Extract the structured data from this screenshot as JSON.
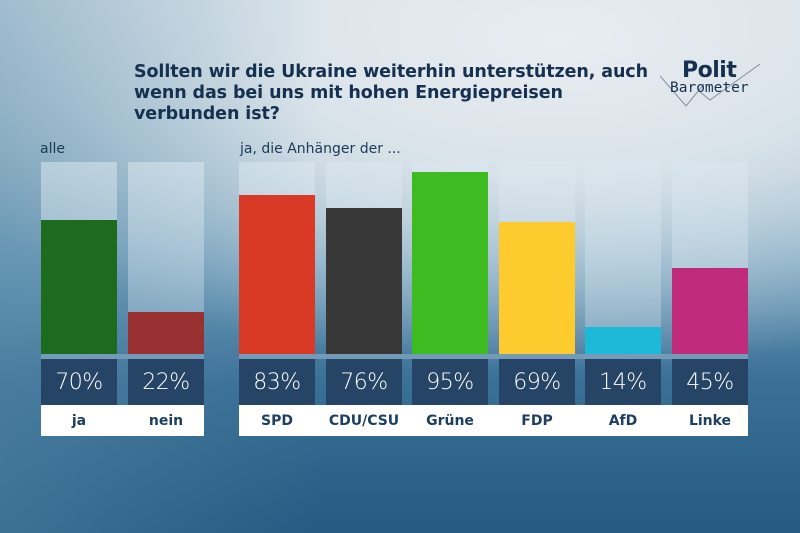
{
  "title": "Sollten wir die Ukraine weiterhin unterstützen, auch wenn das bei uns mit hohen Energiepreisen verbunden ist?",
  "logo": {
    "line1": "Polit",
    "line2": "Barometer"
  },
  "chart_data": [
    {
      "type": "bar",
      "title": "Sollten wir die Ukraine weiterhin unterstützen, auch wenn das bei uns mit hohen Energiepreisen verbunden ist?",
      "group_label": "alle",
      "categories": [
        "ja",
        "nein"
      ],
      "values": [
        70,
        22
      ],
      "value_labels": [
        "70%",
        "22%"
      ],
      "colors": [
        "#1c6b1f",
        "#993032"
      ],
      "unit": "%",
      "ylim": [
        0,
        100
      ]
    },
    {
      "type": "bar",
      "group_label": "ja, die Anhänger der ...",
      "categories": [
        "SPD",
        "CDU/CSU",
        "Grüne",
        "FDP",
        "AfD",
        "Linke"
      ],
      "values": [
        83,
        76,
        95,
        69,
        14,
        45
      ],
      "value_labels": [
        "83%",
        "76%",
        "95%",
        "69%",
        "14%",
        "45%"
      ],
      "colors": [
        "#d93a26",
        "#383838",
        "#3dbb20",
        "#fecb2f",
        "#1eb8d9",
        "#c12b7b"
      ],
      "unit": "%",
      "ylim": [
        0,
        100
      ]
    }
  ]
}
